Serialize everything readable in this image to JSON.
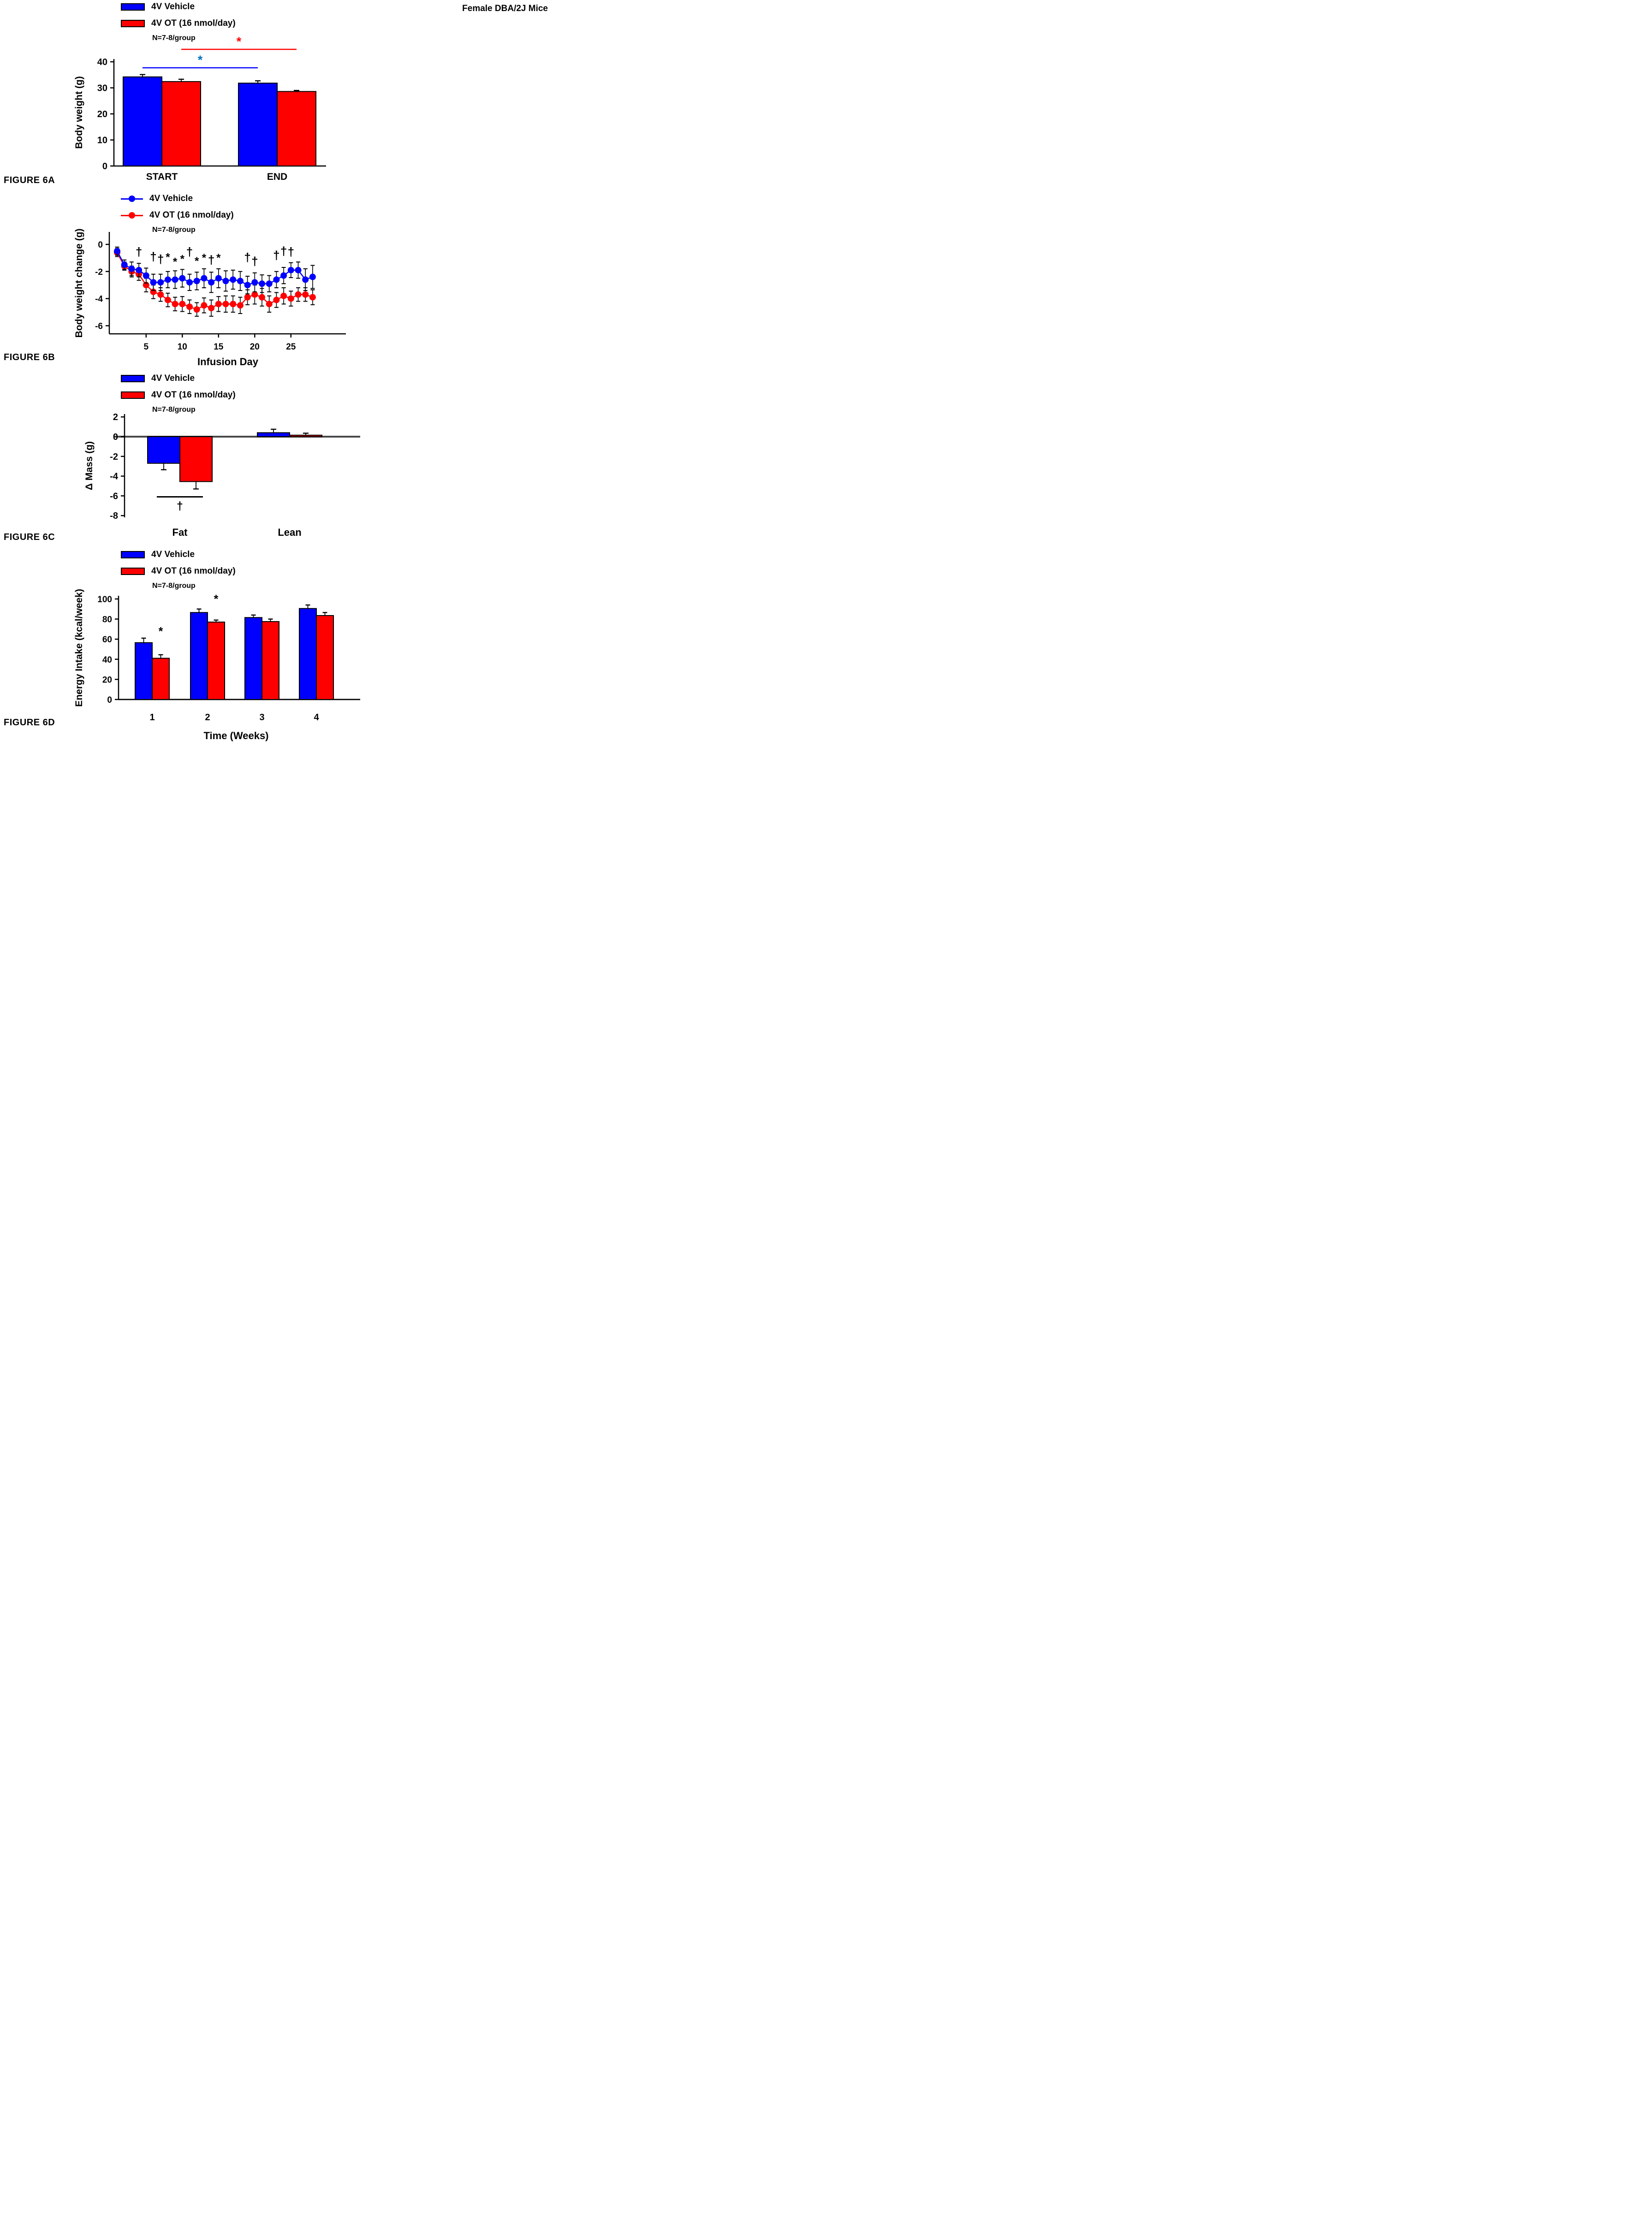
{
  "header": {
    "title": "Female DBA/2J Mice"
  },
  "legend": {
    "vehicle": "4V Vehicle",
    "ot": "4V OT (16 nmol/day)",
    "n": "N=7-8/group"
  },
  "colors": {
    "vehicle": "#0000FF",
    "ot": "#FF0000",
    "vehicle_star": "#0070C0",
    "axis": "#000000",
    "zero_line": "#4A4A4A"
  },
  "figure_labels": {
    "a": "FIGURE 6A",
    "b": "FIGURE 6B",
    "c": "FIGURE 6C",
    "d": "FIGURE 6D"
  },
  "chart_data": [
    {
      "id": "6A",
      "type": "bar",
      "title": "",
      "xlabel": "",
      "ylabel": "Body weight (g)",
      "categories": [
        "START",
        "END"
      ],
      "series": [
        {
          "name": "4V Vehicle",
          "color_key": "vehicle",
          "values": [
            34.2,
            31.8
          ],
          "errors": [
            0.9,
            0.9
          ]
        },
        {
          "name": "4V OT (16 nmol/day)",
          "color_key": "ot",
          "values": [
            32.4,
            28.6
          ],
          "errors": [
            0.9,
            0.4
          ]
        }
      ],
      "ylim": [
        0,
        40
      ],
      "yticks": [
        0,
        10,
        20,
        30,
        40
      ],
      "grid": false,
      "legend_position": "top-left",
      "significance": [
        {
          "symbol": "*",
          "series": "ot",
          "line_color": "#FF0000",
          "symbol_color": "#FF0000",
          "from_category": "START",
          "to_category": "END"
        },
        {
          "symbol": "*",
          "series": "vehicle",
          "line_color": "#0000FF",
          "symbol_color": "#0070C0",
          "from_category": "START",
          "to_category": "END"
        }
      ]
    },
    {
      "id": "6B",
      "type": "line",
      "title": "",
      "xlabel": "Infusion Day",
      "ylabel": "Body weight change (g)",
      "x_start": 1,
      "x_step": 1,
      "xticks": [
        5,
        10,
        15,
        20,
        25
      ],
      "ylim": [
        -6.9,
        0.6
      ],
      "yticks": [
        0,
        -2,
        -4,
        -6
      ],
      "grid": false,
      "legend_position": "top-left",
      "series": [
        {
          "name": "4V Vehicle",
          "color_key": "vehicle",
          "values": [
            -0.5,
            -1.5,
            -1.8,
            -1.9,
            -2.3,
            -2.8,
            -2.8,
            -2.6,
            -2.6,
            -2.5,
            -2.8,
            -2.7,
            -2.5,
            -2.8,
            -2.5,
            -2.7,
            -2.6,
            -2.7,
            -3.0,
            -2.8,
            -2.9,
            -2.9,
            -2.6,
            -2.3,
            -1.9,
            -1.9,
            -2.6,
            -2.4
          ],
          "errors": [
            0.3,
            0.35,
            0.5,
            0.5,
            0.55,
            0.6,
            0.6,
            0.6,
            0.65,
            0.65,
            0.6,
            0.65,
            0.7,
            0.75,
            0.7,
            0.75,
            0.7,
            0.7,
            0.65,
            0.7,
            0.65,
            0.6,
            0.6,
            0.6,
            0.55,
            0.6,
            0.8,
            0.85
          ]
        },
        {
          "name": "4V OT (16 nmol/day)",
          "color_key": "ot",
          "values": [
            -0.6,
            -1.6,
            -2.0,
            -2.2,
            -3.0,
            -3.5,
            -3.7,
            -4.1,
            -4.4,
            -4.4,
            -4.6,
            -4.8,
            -4.5,
            -4.7,
            -4.4,
            -4.4,
            -4.4,
            -4.5,
            -3.9,
            -3.7,
            -3.9,
            -4.4,
            -4.1,
            -3.8,
            -4.0,
            -3.7,
            -3.7,
            -3.9
          ],
          "errors": [
            0.3,
            0.3,
            0.4,
            0.45,
            0.5,
            0.5,
            0.5,
            0.5,
            0.5,
            0.55,
            0.5,
            0.5,
            0.55,
            0.6,
            0.55,
            0.6,
            0.6,
            0.6,
            0.55,
            0.7,
            0.65,
            0.6,
            0.55,
            0.6,
            0.55,
            0.5,
            0.5,
            0.55
          ]
        }
      ],
      "annotations": [
        {
          "day": 4,
          "symbol": "†",
          "value": -0.85
        },
        {
          "day": 6,
          "symbol": "†",
          "value": -1.2
        },
        {
          "day": 7,
          "symbol": "†",
          "value": -1.4
        },
        {
          "day": 8,
          "symbol": "*",
          "value": -1.2
        },
        {
          "day": 9,
          "symbol": "*",
          "value": -1.55
        },
        {
          "day": 10,
          "symbol": "*",
          "value": -1.35
        },
        {
          "day": 11,
          "symbol": "†",
          "value": -0.85
        },
        {
          "day": 12,
          "symbol": "*",
          "value": -1.5
        },
        {
          "day": 13,
          "symbol": "*",
          "value": -1.25
        },
        {
          "day": 14,
          "symbol": "†",
          "value": -1.45
        },
        {
          "day": 15,
          "symbol": "*",
          "value": -1.25
        },
        {
          "day": 19,
          "symbol": "†",
          "value": -1.25
        },
        {
          "day": 20,
          "symbol": "†",
          "value": -1.55
        },
        {
          "day": 23,
          "symbol": "†",
          "value": -1.1
        },
        {
          "day": 24,
          "symbol": "†",
          "value": -0.8
        },
        {
          "day": 25,
          "symbol": "†",
          "value": -0.85
        }
      ]
    },
    {
      "id": "6C",
      "type": "bar",
      "title": "",
      "xlabel": "",
      "ylabel": "Δ Mass (g)",
      "categories": [
        "Fat",
        "Lean"
      ],
      "series": [
        {
          "name": "4V Vehicle",
          "color_key": "vehicle",
          "values": [
            -2.7,
            0.4
          ],
          "errors": [
            0.65,
            0.35
          ]
        },
        {
          "name": "4V OT (16 nmol/day)",
          "color_key": "ot",
          "values": [
            -4.55,
            0.15
          ],
          "errors": [
            0.75,
            0.2
          ]
        }
      ],
      "ylim": [
        -8,
        2
      ],
      "yticks": [
        2,
        0,
        -2,
        -4,
        -6,
        -8
      ],
      "grid": false,
      "zero_line": true,
      "legend_position": "top-left",
      "significance": [
        {
          "symbol": "†",
          "category": "Fat",
          "line_y": -6.1,
          "symbol_y": -7.4
        }
      ]
    },
    {
      "id": "6D",
      "type": "bar",
      "title": "",
      "xlabel": "Time (Weeks)",
      "ylabel": "Energy Intake (kcal/week)",
      "categories": [
        "1",
        "2",
        "3",
        "4"
      ],
      "series": [
        {
          "name": "4V Vehicle",
          "color_key": "vehicle",
          "values": [
            56.5,
            86.5,
            81.5,
            90.5
          ],
          "errors": [
            4.5,
            3.5,
            2.5,
            3.5
          ]
        },
        {
          "name": "4V OT (16 nmol/day)",
          "color_key": "ot",
          "values": [
            41,
            77,
            77.5,
            83.5
          ],
          "errors": [
            3.5,
            2,
            2.5,
            3
          ]
        }
      ],
      "ylim": [
        0,
        100
      ],
      "yticks": [
        0,
        20,
        40,
        60,
        80,
        100
      ],
      "grid": false,
      "legend_position": "top-left",
      "significance": [
        {
          "symbol": "*",
          "category": "1",
          "y": 64
        },
        {
          "symbol": "*",
          "category": "2",
          "y": 96
        }
      ]
    }
  ]
}
